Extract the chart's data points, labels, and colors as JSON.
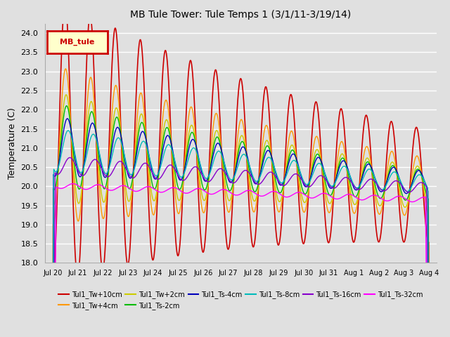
{
  "title": "MB Tule Tower: Tule Temps 1 (3/1/11-3/19/14)",
  "ylabel": "Temperature (C)",
  "ylim": [
    18.0,
    24.25
  ],
  "yticks": [
    18.0,
    18.5,
    19.0,
    19.5,
    20.0,
    20.5,
    21.0,
    21.5,
    22.0,
    22.5,
    23.0,
    23.5,
    24.0
  ],
  "bg_color": "#e0e0e0",
  "grid_color": "#ffffff",
  "legend_label": "MB_tule",
  "series": [
    {
      "name": "Tul1_Tw+10cm",
      "color": "#cc0000",
      "lw": 1.2
    },
    {
      "name": "Tul1_Tw+4cm",
      "color": "#ff9900",
      "lw": 1.0
    },
    {
      "name": "Tul1_Tw+2cm",
      "color": "#cccc00",
      "lw": 1.0
    },
    {
      "name": "Tul1_Ts-2cm",
      "color": "#00bb00",
      "lw": 1.0
    },
    {
      "name": "Tul1_Ts-4cm",
      "color": "#0000bb",
      "lw": 1.0
    },
    {
      "name": "Tul1_Ts-8cm",
      "color": "#00bbbb",
      "lw": 1.0
    },
    {
      "name": "Tul1_Ts-16cm",
      "color": "#8800cc",
      "lw": 1.0
    },
    {
      "name": "Tul1_Ts-32cm",
      "color": "#ff00ff",
      "lw": 1.0
    }
  ],
  "n_points": 1500
}
